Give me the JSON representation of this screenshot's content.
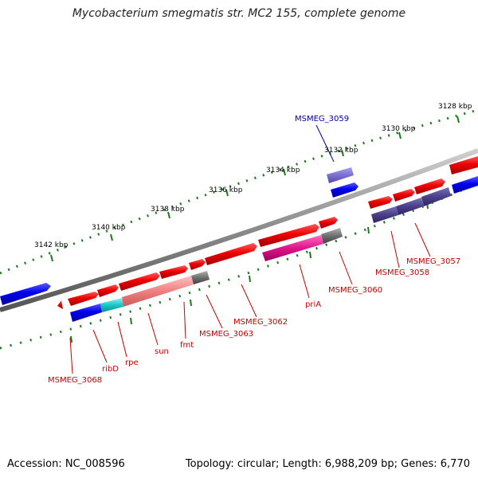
{
  "title": "Mycobacterium smegmatis str. MC2 155, complete genome",
  "footer": {
    "accession": "Accession: NC_008596",
    "summary": "Topology: circular; Length: 6,988,209 bp; Genes: 6,770"
  },
  "tick_labels": [
    "3128 kbp",
    "3130 kbp",
    "3132 kbp",
    "3134 kbp",
    "3136 kbp",
    "3138 kbp",
    "3140 kbp",
    "3142 kbp"
  ],
  "gene_labels": [
    "MSMEG_3059",
    "MSMEG_3057",
    "MSMEG_3058",
    "MSMEG_3060",
    "priA",
    "MSMEG_3062",
    "MSMEG_3063",
    "fmt",
    "sun",
    "rpe",
    "ribD",
    "MSMEG_3068"
  ],
  "colors": {
    "backbone": "#808080",
    "forward_gene": "#e00000",
    "reverse_gene": "#0000e0",
    "cds_dark": "#4a3f8a",
    "light_purple": "#7b6fd0",
    "magenta": "#e0138a",
    "pink": "#f08080",
    "cyan": "#19c8c8",
    "gray_feature": "#707070",
    "tick": "#1a7a1a",
    "label_red": "#cc0000",
    "label_blue": "#0000aa"
  }
}
